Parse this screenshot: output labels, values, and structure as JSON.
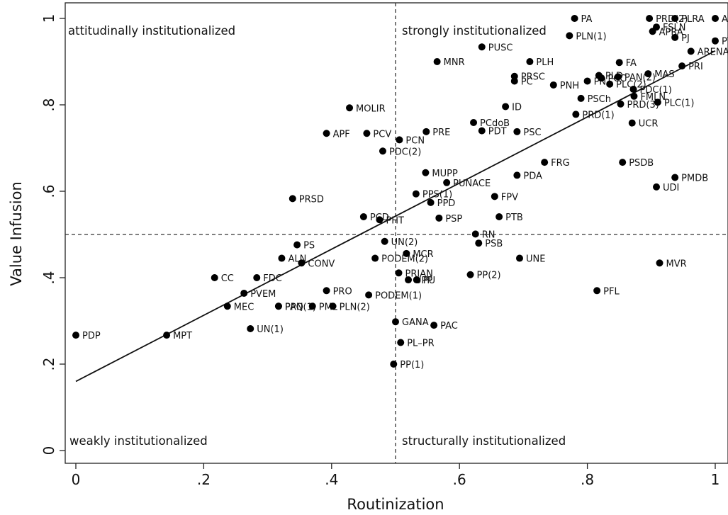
{
  "chart_data": {
    "type": "scatter",
    "xlabel": "Routinization",
    "ylabel": "Value Infusion",
    "xlim": [
      0,
      1
    ],
    "ylim": [
      0,
      1
    ],
    "x_ticks": [
      0,
      0.2,
      0.4,
      0.6,
      0.8,
      1
    ],
    "x_tick_labels": [
      "0",
      ".2",
      ".4",
      ".6",
      ".8",
      "1"
    ],
    "y_ticks": [
      0,
      0.2,
      0.4,
      0.6,
      0.8,
      1
    ],
    "y_tick_labels": [
      "0",
      ".2",
      ".4",
      ".6",
      ".8",
      "1"
    ],
    "grid": false,
    "reference_lines": {
      "x": 0.5,
      "y": 0.5,
      "style": "dashed"
    },
    "fit_line": {
      "x": [
        0,
        1
      ],
      "y": [
        0.16,
        0.925
      ]
    },
    "quadrant_labels": {
      "top_left": "attitudinally institutionalized",
      "top_right": "strongly institutionalized",
      "bottom_left": "weakly institutionalized",
      "bottom_right": "structurally institutionalized"
    },
    "points": [
      {
        "label": "PDP",
        "x": 0.0,
        "y": 0.267
      },
      {
        "label": "MPT",
        "x": 0.142,
        "y": 0.267
      },
      {
        "label": "CC",
        "x": 0.217,
        "y": 0.4
      },
      {
        "label": "PVEM",
        "x": 0.263,
        "y": 0.364
      },
      {
        "label": "MEC",
        "x": 0.237,
        "y": 0.334
      },
      {
        "label": "UN(1)",
        "x": 0.273,
        "y": 0.282
      },
      {
        "label": "PAN(1)",
        "x": 0.317,
        "y": 0.334
      },
      {
        "label": "PPQ",
        "x": 0.317,
        "y": 0.334
      },
      {
        "label": "PML",
        "x": 0.37,
        "y": 0.334
      },
      {
        "label": "FDC",
        "x": 0.283,
        "y": 0.4
      },
      {
        "label": "ALN",
        "x": 0.322,
        "y": 0.445
      },
      {
        "label": "CONV",
        "x": 0.353,
        "y": 0.434
      },
      {
        "label": "PS",
        "x": 0.346,
        "y": 0.476
      },
      {
        "label": "PRO",
        "x": 0.392,
        "y": 0.37
      },
      {
        "label": "PLN(2)",
        "x": 0.402,
        "y": 0.334
      },
      {
        "label": "PODEM(1)",
        "x": 0.458,
        "y": 0.36
      },
      {
        "label": "PODEM(2)",
        "x": 0.468,
        "y": 0.445
      },
      {
        "label": "PRSD",
        "x": 0.339,
        "y": 0.583
      },
      {
        "label": "PCD",
        "x": 0.45,
        "y": 0.541
      },
      {
        "label": "PHT",
        "x": 0.475,
        "y": 0.534
      },
      {
        "label": "UN(2)",
        "x": 0.483,
        "y": 0.484
      },
      {
        "label": "MCR",
        "x": 0.517,
        "y": 0.456
      },
      {
        "label": "PRIAN",
        "x": 0.505,
        "y": 0.411
      },
      {
        "label": "UPP",
        "x": 0.52,
        "y": 0.395
      },
      {
        "label": "PU",
        "x": 0.533,
        "y": 0.395
      },
      {
        "label": "GANA",
        "x": 0.5,
        "y": 0.298
      },
      {
        "label": "PAC",
        "x": 0.56,
        "y": 0.29
      },
      {
        "label": "PL–PR",
        "x": 0.508,
        "y": 0.25
      },
      {
        "label": "PP(1)",
        "x": 0.497,
        "y": 0.2
      },
      {
        "label": "APF",
        "x": 0.392,
        "y": 0.734
      },
      {
        "label": "PCV",
        "x": 0.455,
        "y": 0.734
      },
      {
        "label": "MOLIR",
        "x": 0.428,
        "y": 0.793
      },
      {
        "label": "PCN",
        "x": 0.506,
        "y": 0.719
      },
      {
        "label": "PDC(2)",
        "x": 0.48,
        "y": 0.693
      },
      {
        "label": "PRE",
        "x": 0.548,
        "y": 0.738
      },
      {
        "label": "MUPP",
        "x": 0.547,
        "y": 0.643
      },
      {
        "label": "PUNACE",
        "x": 0.58,
        "y": 0.62
      },
      {
        "label": "PPS(1)",
        "x": 0.532,
        "y": 0.594
      },
      {
        "label": "PPD",
        "x": 0.555,
        "y": 0.574
      },
      {
        "label": "PSP",
        "x": 0.568,
        "y": 0.538
      },
      {
        "label": "RN",
        "x": 0.625,
        "y": 0.501
      },
      {
        "label": "PSB",
        "x": 0.63,
        "y": 0.48
      },
      {
        "label": "PP(2)",
        "x": 0.617,
        "y": 0.407
      },
      {
        "label": "UNE",
        "x": 0.694,
        "y": 0.445
      },
      {
        "label": "PTB",
        "x": 0.662,
        "y": 0.541
      },
      {
        "label": "FPV",
        "x": 0.655,
        "y": 0.588
      },
      {
        "label": "PDA",
        "x": 0.69,
        "y": 0.637
      },
      {
        "label": "FRG",
        "x": 0.733,
        "y": 0.667
      },
      {
        "label": "PCdoB",
        "x": 0.622,
        "y": 0.759
      },
      {
        "label": "PDT",
        "x": 0.635,
        "y": 0.74
      },
      {
        "label": "PSC",
        "x": 0.69,
        "y": 0.738
      },
      {
        "label": "ID",
        "x": 0.672,
        "y": 0.796
      },
      {
        "label": "MNR",
        "x": 0.565,
        "y": 0.9
      },
      {
        "label": "PUSC",
        "x": 0.635,
        "y": 0.934
      },
      {
        "label": "PLH",
        "x": 0.71,
        "y": 0.9
      },
      {
        "label": "PRSC",
        "x": 0.686,
        "y": 0.866
      },
      {
        "label": "PC",
        "x": 0.686,
        "y": 0.855
      },
      {
        "label": "PNH",
        "x": 0.747,
        "y": 0.846
      },
      {
        "label": "PN",
        "x": 0.8,
        "y": 0.855
      },
      {
        "label": "PA",
        "x": 0.78,
        "y": 1.0
      },
      {
        "label": "PLN(1)",
        "x": 0.772,
        "y": 0.96
      },
      {
        "label": "PLD",
        "x": 0.818,
        "y": 0.868
      },
      {
        "label": "PCC",
        "x": 0.822,
        "y": 0.862
      },
      {
        "label": "FA",
        "x": 0.85,
        "y": 0.898
      },
      {
        "label": "PAN(2)",
        "x": 0.848,
        "y": 0.865
      },
      {
        "label": "PLC(2)",
        "x": 0.835,
        "y": 0.848
      },
      {
        "label": "PSCh",
        "x": 0.79,
        "y": 0.815
      },
      {
        "label": "PRD(1)",
        "x": 0.782,
        "y": 0.778
      },
      {
        "label": "PRD(3)",
        "x": 0.852,
        "y": 0.802
      },
      {
        "label": "PDC(1)",
        "x": 0.872,
        "y": 0.836
      },
      {
        "label": "FMLN",
        "x": 0.873,
        "y": 0.82
      },
      {
        "label": "PLC(1)",
        "x": 0.91,
        "y": 0.806
      },
      {
        "label": "UCR",
        "x": 0.87,
        "y": 0.758
      },
      {
        "label": "MAS",
        "x": 0.895,
        "y": 0.872
      },
      {
        "label": "PRI",
        "x": 0.948,
        "y": 0.89
      },
      {
        "label": "ARENA",
        "x": 0.962,
        "y": 0.924
      },
      {
        "label": "PT",
        "x": 1.0,
        "y": 0.948
      },
      {
        "label": "PJ",
        "x": 0.937,
        "y": 0.956
      },
      {
        "label": "APRA",
        "x": 0.902,
        "y": 0.97
      },
      {
        "label": "FSLN",
        "x": 0.908,
        "y": 0.98
      },
      {
        "label": "PRD(2)",
        "x": 0.897,
        "y": 1.0
      },
      {
        "label": "PLRA",
        "x": 0.937,
        "y": 1.0
      },
      {
        "label": "ANR",
        "x": 1.0,
        "y": 1.0
      },
      {
        "label": "PSDB",
        "x": 0.855,
        "y": 0.667
      },
      {
        "label": "PMDB",
        "x": 0.937,
        "y": 0.632
      },
      {
        "label": "UDI",
        "x": 0.908,
        "y": 0.61
      },
      {
        "label": "MVR",
        "x": 0.913,
        "y": 0.434
      },
      {
        "label": "PFL",
        "x": 0.815,
        "y": 0.37
      }
    ]
  }
}
